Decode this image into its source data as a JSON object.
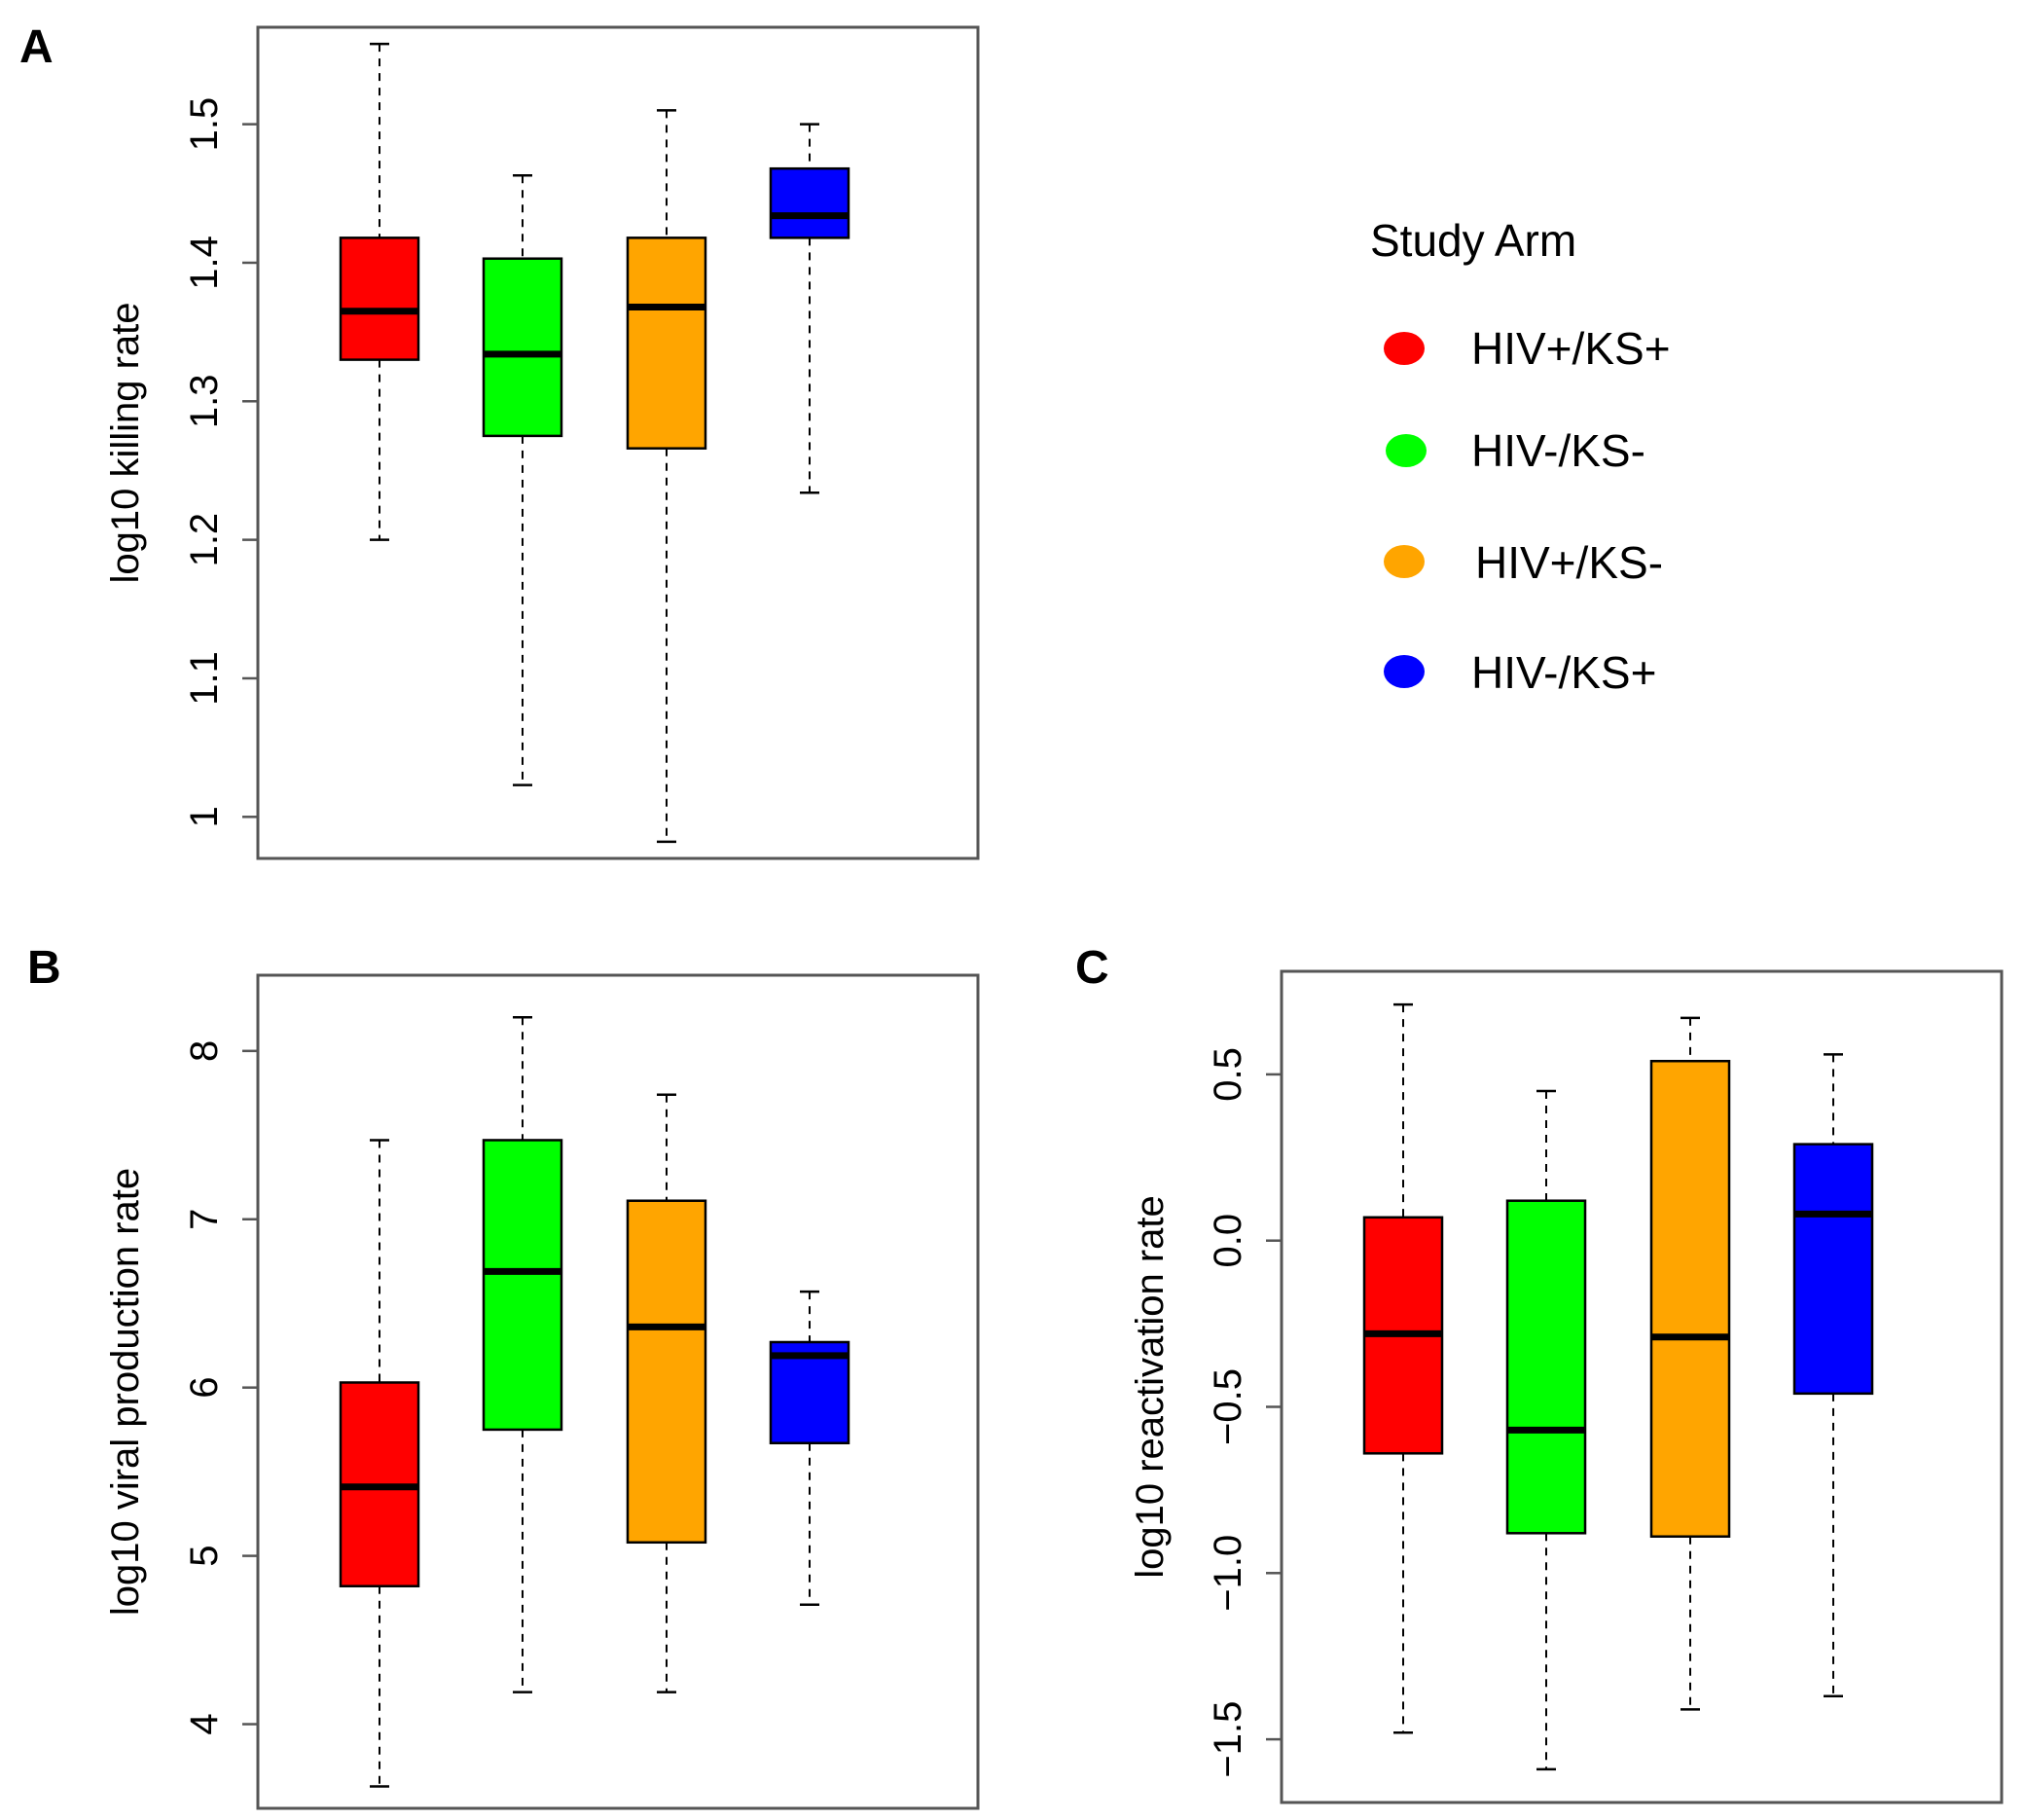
{
  "legend": {
    "title": "Study Arm",
    "entries": [
      {
        "label": "HIV+/KS+",
        "color": "#ff0000"
      },
      {
        "label": "HIV-/KS-",
        "color": "#00ff00"
      },
      {
        "label": "HIV+/KS-",
        "color": "#ffa500"
      },
      {
        "label": "HIV-/KS+",
        "color": "#0000ff"
      }
    ]
  },
  "chart_data": [
    {
      "panel": "A",
      "type": "box",
      "ylabel": "log10 killing rate",
      "ylim": [
        0.97,
        1.57
      ],
      "yticks": [
        1,
        1.1,
        1.2,
        1.3,
        1.4,
        1.5
      ],
      "ytick_labels": [
        "1",
        "1.1",
        "1.2",
        "1.3",
        "1.4",
        "1.5"
      ],
      "groups": [
        "HIV+/KS+",
        "HIV-/KS-",
        "HIV+/KS-",
        "HIV-/KS+"
      ],
      "boxes": [
        {
          "min": 1.2,
          "q1": 1.33,
          "median": 1.365,
          "q3": 1.418,
          "max": 1.558
        },
        {
          "min": 1.023,
          "q1": 1.275,
          "median": 1.334,
          "q3": 1.403,
          "max": 1.463
        },
        {
          "min": 0.982,
          "q1": 1.266,
          "median": 1.368,
          "q3": 1.418,
          "max": 1.51
        },
        {
          "min": 1.234,
          "q1": 1.418,
          "median": 1.434,
          "q3": 1.468,
          "max": 1.5
        }
      ]
    },
    {
      "panel": "B",
      "type": "box",
      "ylabel": "log10 viral production rate",
      "ylim": [
        3.5,
        8.45
      ],
      "yticks": [
        4,
        5,
        6,
        7,
        8
      ],
      "ytick_labels": [
        "4",
        "5",
        "6",
        "7",
        "8"
      ],
      "groups": [
        "HIV+/KS+",
        "HIV-/KS-",
        "HIV+/KS-",
        "HIV-/KS+"
      ],
      "boxes": [
        {
          "min": 3.63,
          "q1": 4.82,
          "median": 5.41,
          "q3": 6.03,
          "max": 7.47
        },
        {
          "min": 4.19,
          "q1": 5.75,
          "median": 6.69,
          "q3": 7.47,
          "max": 8.2
        },
        {
          "min": 4.19,
          "q1": 5.08,
          "median": 6.36,
          "q3": 7.11,
          "max": 7.74
        },
        {
          "min": 4.71,
          "q1": 5.67,
          "median": 6.19,
          "q3": 6.27,
          "max": 6.57
        }
      ]
    },
    {
      "panel": "C",
      "type": "box",
      "ylabel": "log10 reactivation rate",
      "ylim": [
        -1.69,
        0.81
      ],
      "yticks": [
        -1.5,
        -1.0,
        -0.5,
        0.0,
        0.5
      ],
      "ytick_labels": [
        "−1.5",
        "−1.0",
        "−0.5",
        "0.0",
        "0.5"
      ],
      "groups": [
        "HIV+/KS+",
        "HIV-/KS-",
        "HIV+/KS-",
        "HIV-/KS+"
      ],
      "boxes": [
        {
          "min": -1.48,
          "q1": -0.64,
          "median": -0.28,
          "q3": 0.07,
          "max": 0.71
        },
        {
          "min": -1.59,
          "q1": -0.88,
          "median": -0.57,
          "q3": 0.12,
          "max": 0.45
        },
        {
          "min": -1.41,
          "q1": -0.89,
          "median": -0.29,
          "q3": 0.54,
          "max": 0.67
        },
        {
          "min": -1.37,
          "q1": -0.46,
          "median": 0.08,
          "q3": 0.29,
          "max": 0.56
        }
      ]
    }
  ]
}
